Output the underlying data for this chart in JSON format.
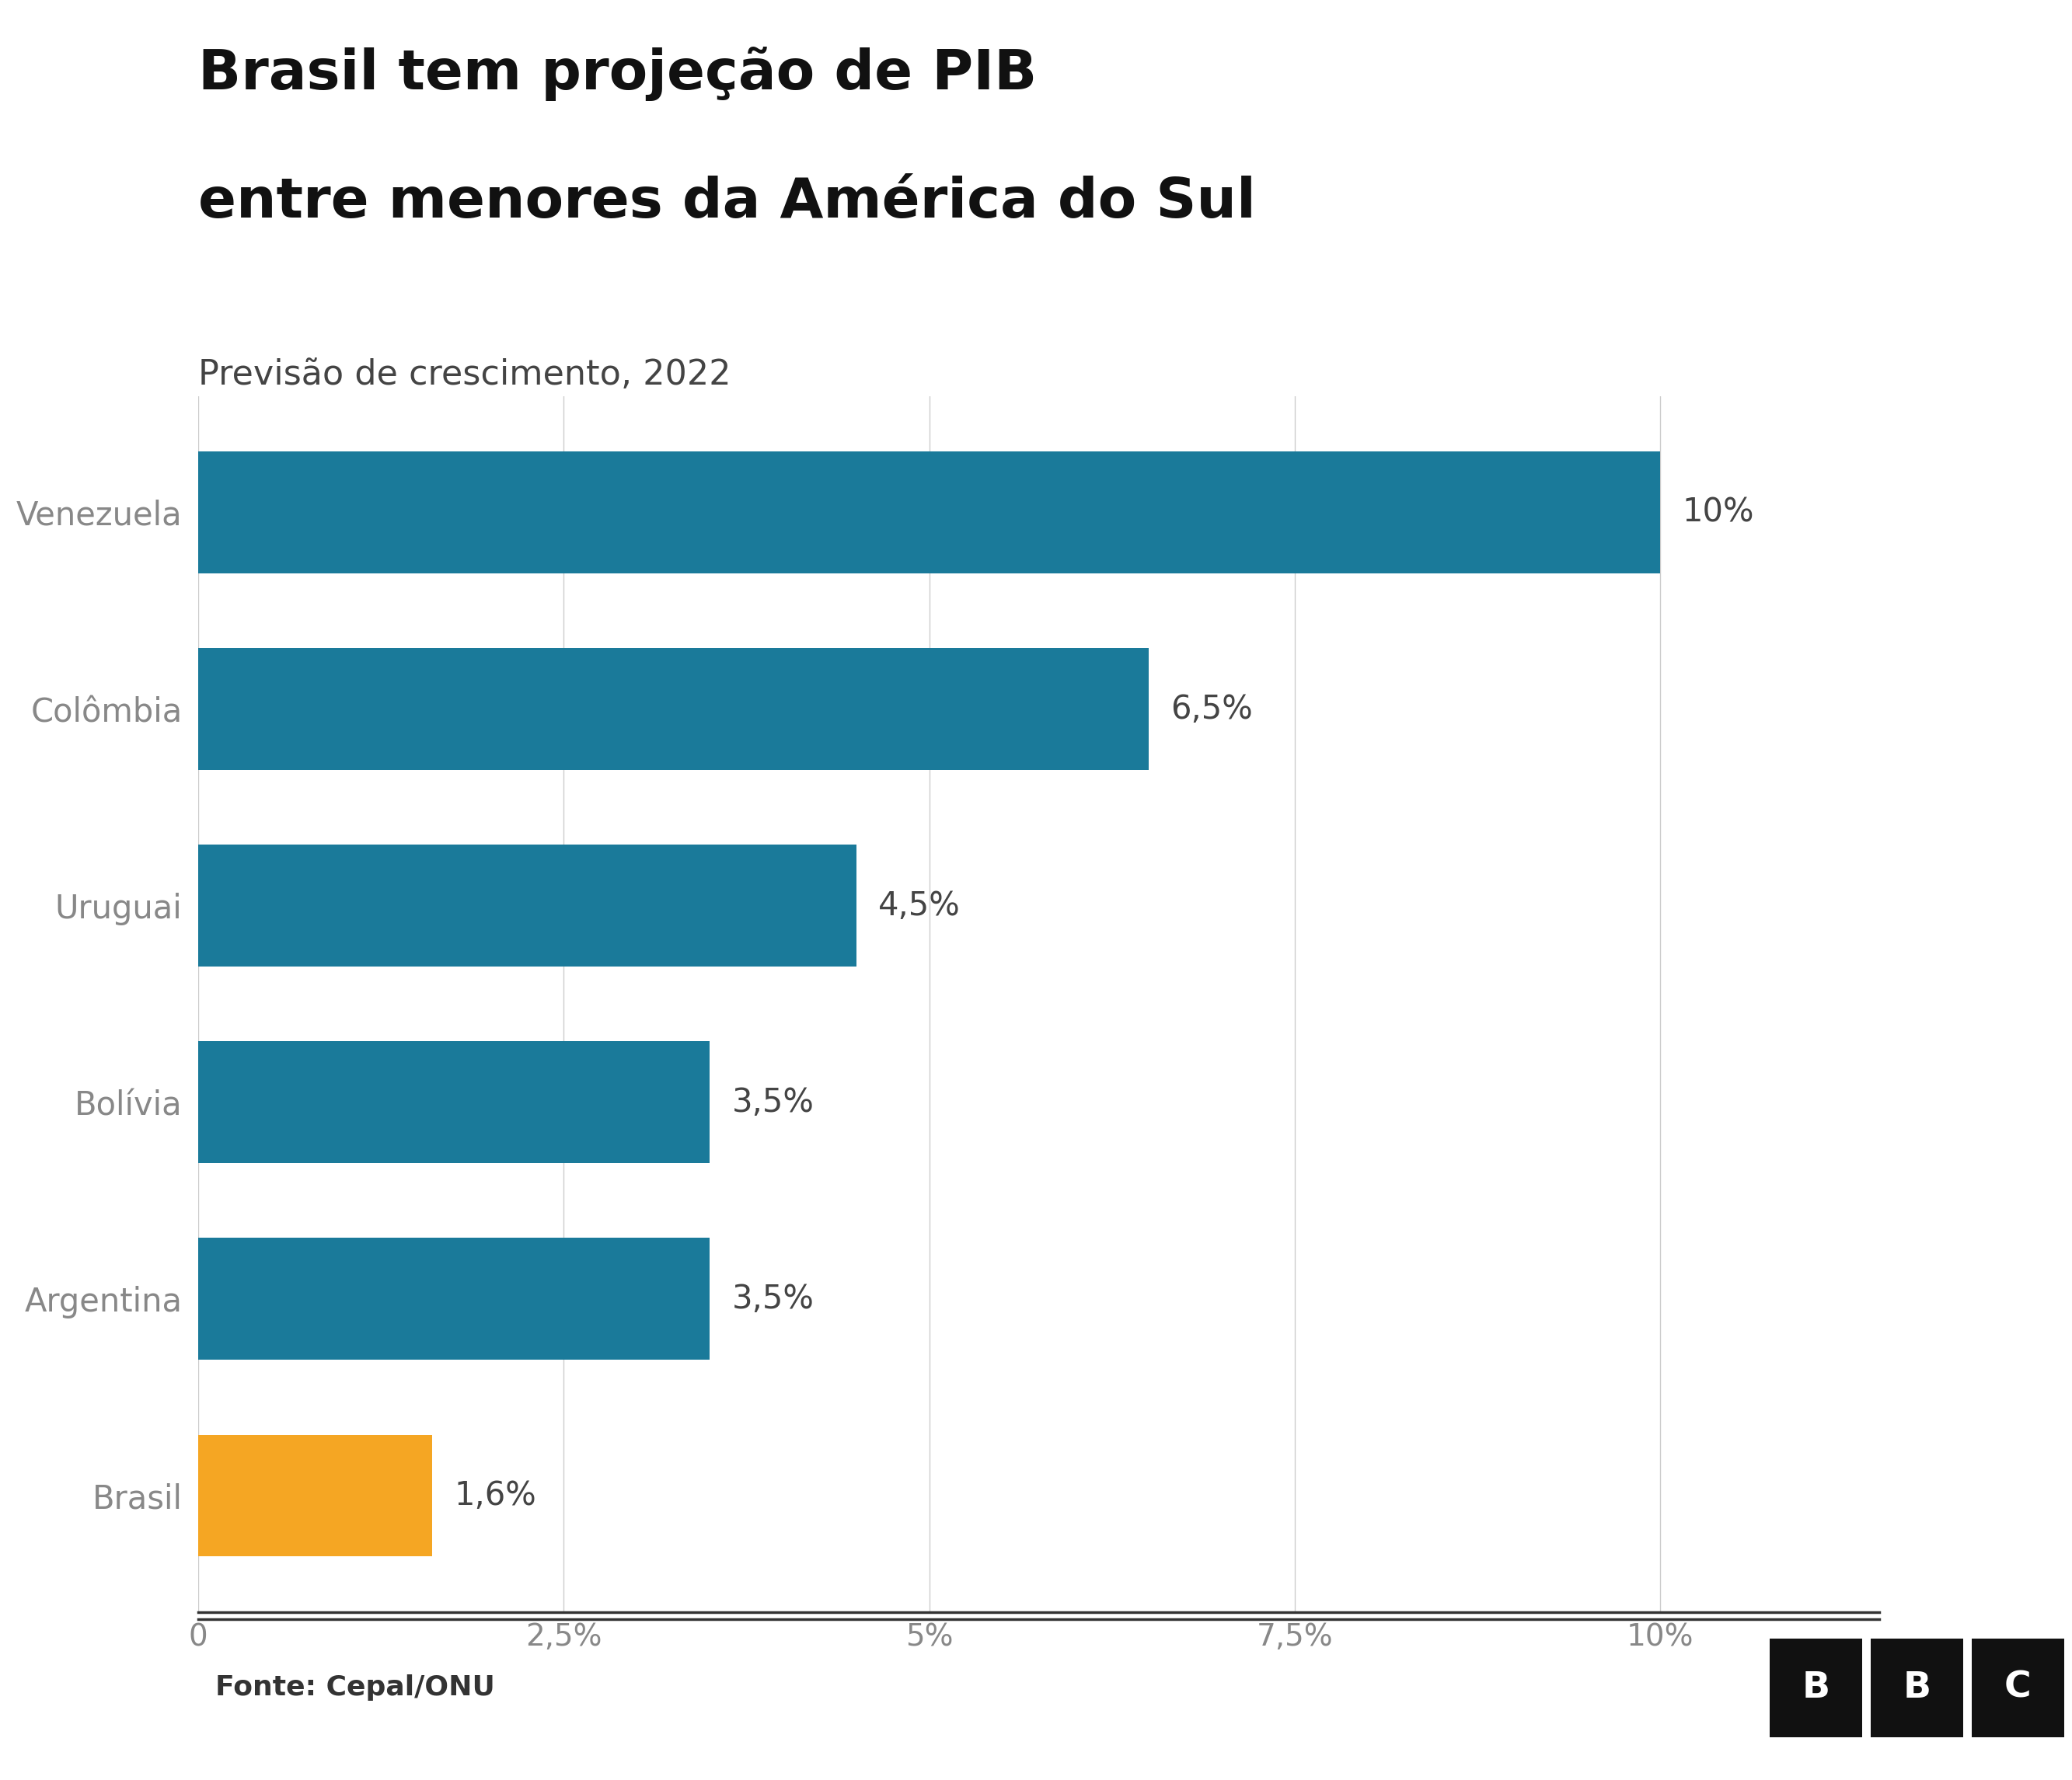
{
  "title_line1": "Brasil tem projeção de PIB",
  "title_line2": "entre menores da América do Sul",
  "subtitle": "Previsão de crescimento, 2022",
  "categories": [
    "Venezuela",
    "Colômbia",
    "Uruguai",
    "Bolívia",
    "Argentina",
    "Brasil"
  ],
  "values": [
    10.0,
    6.5,
    4.5,
    3.5,
    3.5,
    1.6
  ],
  "labels": [
    "10%",
    "6,5%",
    "4,5%",
    "3,5%",
    "3,5%",
    "1,6%"
  ],
  "bar_colors": [
    "#1a7a9a",
    "#1a7a9a",
    "#1a7a9a",
    "#1a7a9a",
    "#1a7a9a",
    "#f5a623"
  ],
  "teal_color": "#1a7a9a",
  "orange_color": "#f5a623",
  "xticks": [
    0,
    2.5,
    5.0,
    7.5,
    10.0
  ],
  "xtick_labels": [
    "0",
    "2,5%",
    "5%",
    "7,5%",
    "10%"
  ],
  "xlim": [
    0,
    11.5
  ],
  "source_text": "Fonte: Cepal/ONU",
  "background_color": "#ffffff",
  "title_fontsize": 52,
  "subtitle_fontsize": 32,
  "label_fontsize": 30,
  "ytick_fontsize": 30,
  "xtick_fontsize": 28,
  "source_fontsize": 26,
  "bar_height": 0.62,
  "ylabel_color": "#888888",
  "grid_color": "#cccccc",
  "axis_color": "#333333"
}
